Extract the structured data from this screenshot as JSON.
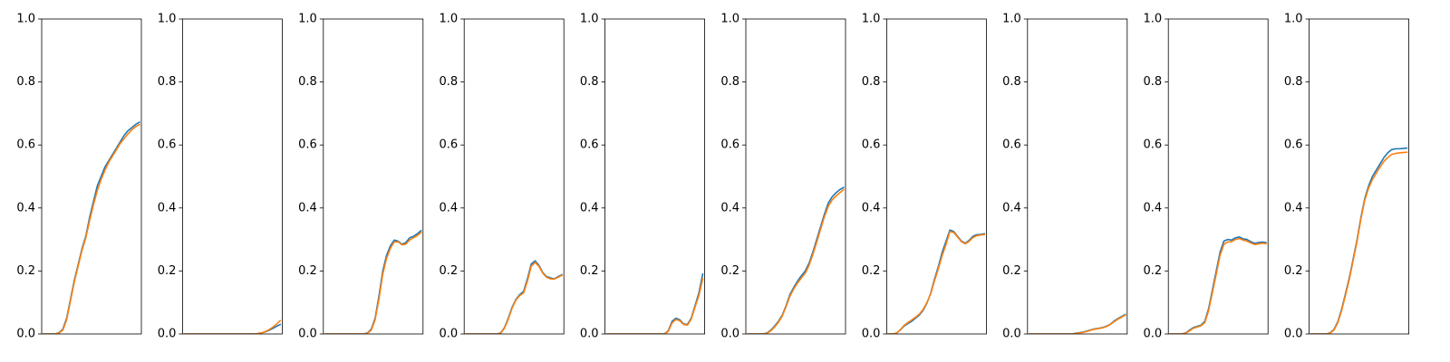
{
  "chart_data": {
    "type": "line",
    "panel_count": 10,
    "grid": false,
    "legend": "none",
    "x_ticks_visible": false,
    "ylim": [
      0,
      1
    ],
    "yticks": [
      "0.0",
      "0.2",
      "0.4",
      "0.6",
      "0.8",
      "1.0"
    ],
    "colors": [
      "#1f77b4",
      "#ff7f0e"
    ],
    "x": [
      0,
      0.04,
      0.08,
      0.12,
      0.16,
      0.2,
      0.24,
      0.28,
      0.32,
      0.36,
      0.4,
      0.44,
      0.48,
      0.52,
      0.56,
      0.6,
      0.64,
      0.68,
      0.72,
      0.76,
      0.8,
      0.84,
      0.88,
      0.92,
      0.96,
      1.0
    ],
    "panels": [
      {
        "series": [
          {
            "values": [
              0.0,
              0.0,
              0.0,
              0.0,
              0.004,
              0.015,
              0.05,
              0.11,
              0.17,
              0.22,
              0.27,
              0.31,
              0.37,
              0.42,
              0.47,
              0.5,
              0.53,
              0.55,
              0.57,
              0.59,
              0.61,
              0.63,
              0.645,
              0.655,
              0.665,
              0.672
            ]
          },
          {
            "values": [
              0.0,
              0.0,
              0.0,
              0.0,
              0.003,
              0.012,
              0.045,
              0.105,
              0.165,
              0.215,
              0.265,
              0.305,
              0.36,
              0.41,
              0.455,
              0.49,
              0.52,
              0.545,
              0.565,
              0.585,
              0.605,
              0.62,
              0.635,
              0.648,
              0.658,
              0.665
            ]
          }
        ]
      },
      {
        "series": [
          {
            "values": [
              0.0,
              0.0,
              0.0,
              0.0,
              0.0,
              0.0,
              0.0,
              0.0,
              0.0,
              0.0,
              0.0,
              0.0,
              0.0,
              0.0,
              0.0,
              0.0,
              0.0,
              0.0,
              0.0,
              0.001,
              0.003,
              0.006,
              0.011,
              0.017,
              0.024,
              0.03
            ]
          },
          {
            "values": [
              0.0,
              0.0,
              0.0,
              0.0,
              0.0,
              0.0,
              0.0,
              0.0,
              0.0,
              0.0,
              0.0,
              0.0,
              0.0,
              0.0,
              0.0,
              0.0,
              0.0,
              0.0,
              0.0,
              0.001,
              0.003,
              0.007,
              0.013,
              0.021,
              0.031,
              0.042
            ]
          }
        ]
      },
      {
        "series": [
          {
            "values": [
              0.0,
              0.0,
              0.0,
              0.0,
              0.0,
              0.0,
              0.0,
              0.0,
              0.0,
              0.0,
              0.0,
              0.003,
              0.015,
              0.05,
              0.12,
              0.2,
              0.25,
              0.28,
              0.298,
              0.295,
              0.285,
              0.29,
              0.305,
              0.31,
              0.318,
              0.328
            ]
          },
          {
            "values": [
              0.0,
              0.0,
              0.0,
              0.0,
              0.0,
              0.0,
              0.0,
              0.0,
              0.0,
              0.0,
              0.0,
              0.002,
              0.012,
              0.045,
              0.11,
              0.19,
              0.24,
              0.272,
              0.292,
              0.293,
              0.283,
              0.285,
              0.298,
              0.305,
              0.312,
              0.322
            ]
          }
        ]
      },
      {
        "series": [
          {
            "values": [
              0.0,
              0.0,
              0.0,
              0.0,
              0.0,
              0.0,
              0.0,
              0.0,
              0.0,
              0.003,
              0.02,
              0.05,
              0.085,
              0.11,
              0.125,
              0.135,
              0.175,
              0.222,
              0.232,
              0.218,
              0.195,
              0.182,
              0.178,
              0.175,
              0.182,
              0.188
            ]
          },
          {
            "values": [
              0.0,
              0.0,
              0.0,
              0.0,
              0.0,
              0.0,
              0.0,
              0.0,
              0.0,
              0.002,
              0.018,
              0.047,
              0.082,
              0.108,
              0.122,
              0.13,
              0.168,
              0.215,
              0.227,
              0.215,
              0.193,
              0.18,
              0.175,
              0.174,
              0.18,
              0.186
            ]
          }
        ]
      },
      {
        "series": [
          {
            "values": [
              0.0,
              0.0,
              0.0,
              0.0,
              0.0,
              0.0,
              0.0,
              0.0,
              0.0,
              0.0,
              0.0,
              0.0,
              0.0,
              0.0,
              0.0,
              0.0,
              0.01,
              0.04,
              0.05,
              0.045,
              0.032,
              0.03,
              0.05,
              0.09,
              0.13,
              0.19
            ]
          },
          {
            "values": [
              0.0,
              0.0,
              0.0,
              0.0,
              0.0,
              0.0,
              0.0,
              0.0,
              0.0,
              0.0,
              0.0,
              0.0,
              0.0,
              0.0,
              0.0,
              0.0,
              0.008,
              0.035,
              0.046,
              0.042,
              0.03,
              0.028,
              0.047,
              0.085,
              0.122,
              0.175
            ]
          }
        ]
      },
      {
        "series": [
          {
            "values": [
              0.0,
              0.0,
              0.0,
              0.0,
              0.0,
              0.003,
              0.012,
              0.025,
              0.04,
              0.06,
              0.09,
              0.125,
              0.148,
              0.168,
              0.185,
              0.2,
              0.225,
              0.26,
              0.3,
              0.34,
              0.38,
              0.415,
              0.435,
              0.448,
              0.458,
              0.465
            ]
          },
          {
            "values": [
              0.0,
              0.0,
              0.0,
              0.0,
              0.0,
              0.002,
              0.01,
              0.022,
              0.037,
              0.057,
              0.087,
              0.12,
              0.143,
              0.162,
              0.178,
              0.193,
              0.218,
              0.253,
              0.292,
              0.332,
              0.372,
              0.405,
              0.425,
              0.438,
              0.448,
              0.458
            ]
          }
        ]
      },
      {
        "series": [
          {
            "values": [
              0.0,
              0.0,
              0.002,
              0.012,
              0.025,
              0.033,
              0.04,
              0.05,
              0.06,
              0.075,
              0.098,
              0.13,
              0.175,
              0.215,
              0.26,
              0.295,
              0.33,
              0.325,
              0.31,
              0.295,
              0.288,
              0.297,
              0.31,
              0.315,
              0.316,
              0.318
            ]
          },
          {
            "values": [
              0.0,
              0.0,
              0.002,
              0.013,
              0.027,
              0.036,
              0.044,
              0.053,
              0.063,
              0.078,
              0.1,
              0.128,
              0.17,
              0.208,
              0.25,
              0.285,
              0.325,
              0.322,
              0.308,
              0.293,
              0.286,
              0.294,
              0.306,
              0.312,
              0.314,
              0.316
            ]
          }
        ]
      },
      {
        "series": [
          {
            "values": [
              0.0,
              0.0,
              0.0,
              0.0,
              0.0,
              0.0,
              0.0,
              0.0,
              0.0,
              0.0,
              0.0,
              0.0,
              0.002,
              0.004,
              0.006,
              0.009,
              0.013,
              0.016,
              0.018,
              0.02,
              0.024,
              0.03,
              0.04,
              0.048,
              0.055,
              0.062
            ]
          },
          {
            "values": [
              0.0,
              0.0,
              0.0,
              0.0,
              0.0,
              0.0,
              0.0,
              0.0,
              0.0,
              0.0,
              0.0,
              0.0,
              0.001,
              0.003,
              0.005,
              0.008,
              0.012,
              0.015,
              0.017,
              0.019,
              0.023,
              0.029,
              0.038,
              0.046,
              0.053,
              0.06
            ]
          }
        ]
      },
      {
        "series": [
          {
            "values": [
              0.0,
              0.0,
              0.0,
              0.0,
              0.003,
              0.012,
              0.02,
              0.024,
              0.028,
              0.04,
              0.08,
              0.14,
              0.2,
              0.26,
              0.295,
              0.3,
              0.298,
              0.305,
              0.308,
              0.302,
              0.3,
              0.293,
              0.288,
              0.29,
              0.292,
              0.29
            ]
          },
          {
            "values": [
              0.0,
              0.0,
              0.0,
              0.0,
              0.002,
              0.01,
              0.018,
              0.022,
              0.026,
              0.036,
              0.074,
              0.132,
              0.19,
              0.25,
              0.285,
              0.292,
              0.293,
              0.3,
              0.303,
              0.298,
              0.295,
              0.289,
              0.284,
              0.286,
              0.288,
              0.287
            ]
          }
        ]
      },
      {
        "series": [
          {
            "values": [
              0.0,
              0.0,
              0.0,
              0.0,
              0.0,
              0.004,
              0.015,
              0.04,
              0.08,
              0.13,
              0.18,
              0.24,
              0.3,
              0.37,
              0.43,
              0.47,
              0.5,
              0.52,
              0.54,
              0.56,
              0.575,
              0.585,
              0.588,
              0.588,
              0.589,
              0.59
            ]
          },
          {
            "values": [
              0.0,
              0.0,
              0.0,
              0.0,
              0.0,
              0.003,
              0.013,
              0.037,
              0.076,
              0.125,
              0.175,
              0.235,
              0.295,
              0.365,
              0.425,
              0.463,
              0.49,
              0.51,
              0.53,
              0.548,
              0.56,
              0.57,
              0.573,
              0.575,
              0.576,
              0.577
            ]
          }
        ]
      }
    ]
  }
}
